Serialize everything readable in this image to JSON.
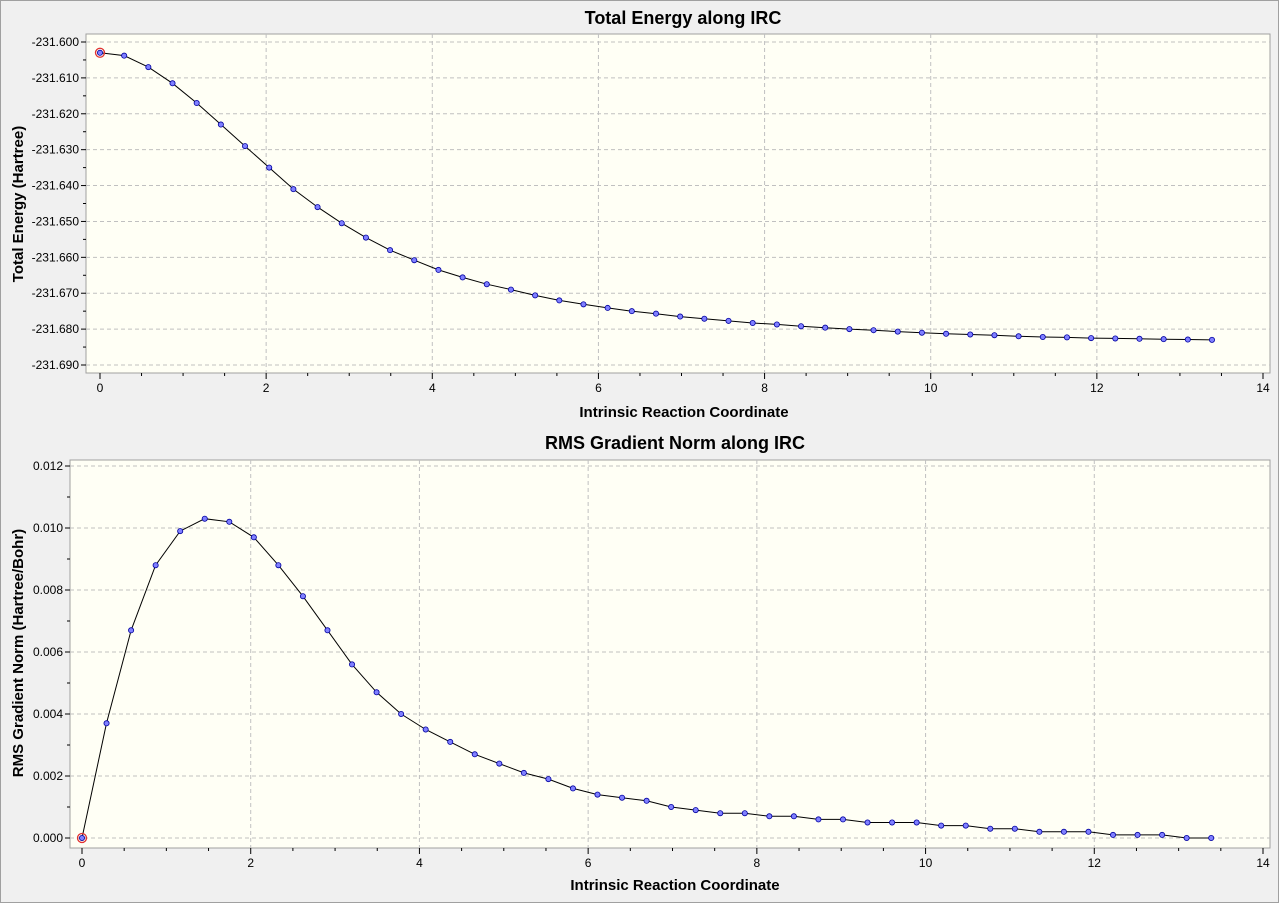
{
  "chart_data": [
    {
      "type": "line",
      "title": "Total Energy along IRC",
      "xlabel": "Intrinsic Reaction Coordinate",
      "ylabel": "Total Energy (Hartree)",
      "xlim": [
        0,
        14
      ],
      "ylim": [
        -231.69,
        -231.6
      ],
      "x_ticks": [
        "0",
        "2",
        "4",
        "6",
        "8",
        "10",
        "12",
        "14"
      ],
      "y_ticks": [
        "-231.600",
        "-231.610",
        "-231.620",
        "-231.630",
        "-231.640",
        "-231.650",
        "-231.660",
        "-231.670",
        "-231.680",
        "-231.690"
      ],
      "grid": true,
      "colors": {
        "line": "#000000",
        "marker_fill": "#8080ff",
        "marker_edge": "#0000a0",
        "highlight": "#e03030",
        "plot_bg": "#fffff5",
        "grid": "#c0c0c0"
      },
      "highlight_index": 0,
      "x": [
        0,
        0.291,
        0.582,
        0.873,
        1.164,
        1.455,
        1.746,
        2.037,
        2.328,
        2.619,
        2.91,
        3.201,
        3.492,
        3.783,
        4.074,
        4.365,
        4.656,
        4.947,
        5.238,
        5.529,
        5.82,
        6.111,
        6.402,
        6.693,
        6.984,
        7.275,
        7.566,
        7.857,
        8.148,
        8.439,
        8.73,
        9.021,
        9.312,
        9.603,
        9.894,
        10.185,
        10.476,
        10.767,
        11.058,
        11.349,
        11.64,
        11.931,
        12.222,
        12.513,
        12.804,
        13.095,
        13.386
      ],
      "y": [
        -231.603,
        -231.6038,
        -231.607,
        -231.6115,
        -231.617,
        -231.623,
        -231.629,
        -231.635,
        -231.641,
        -231.646,
        -231.6505,
        -231.6545,
        -231.658,
        -231.6608,
        -231.6635,
        -231.6656,
        -231.6675,
        -231.669,
        -231.6706,
        -231.672,
        -231.6731,
        -231.6741,
        -231.675,
        -231.6757,
        -231.6765,
        -231.6771,
        -231.6777,
        -231.6783,
        -231.6787,
        -231.6792,
        -231.6796,
        -231.68,
        -231.6803,
        -231.6807,
        -231.681,
        -231.6813,
        -231.6815,
        -231.6817,
        -231.682,
        -231.6822,
        -231.6823,
        -231.6825,
        -231.6826,
        -231.6827,
        -231.6828,
        -231.6829,
        -231.683
      ]
    },
    {
      "type": "line",
      "title": "RMS Gradient Norm along IRC",
      "xlabel": "Intrinsic Reaction Coordinate",
      "ylabel": "RMS Gradient Norm (Hartree/Bohr)",
      "xlim": [
        0,
        14
      ],
      "ylim": [
        0,
        0.012
      ],
      "x_ticks": [
        "0",
        "2",
        "4",
        "6",
        "8",
        "10",
        "12",
        "14"
      ],
      "y_ticks": [
        "0.000",
        "0.002",
        "0.004",
        "0.006",
        "0.008",
        "0.010",
        "0.012"
      ],
      "grid": true,
      "colors": {
        "line": "#000000",
        "marker_fill": "#8080ff",
        "marker_edge": "#0000a0",
        "highlight": "#e03030",
        "plot_bg": "#fffff5",
        "grid": "#c0c0c0"
      },
      "highlight_index": 0,
      "x": [
        0,
        0.291,
        0.582,
        0.873,
        1.164,
        1.455,
        1.746,
        2.037,
        2.328,
        2.619,
        2.91,
        3.201,
        3.492,
        3.783,
        4.074,
        4.365,
        4.656,
        4.947,
        5.238,
        5.529,
        5.82,
        6.111,
        6.402,
        6.693,
        6.984,
        7.275,
        7.566,
        7.857,
        8.148,
        8.439,
        8.73,
        9.021,
        9.312,
        9.603,
        9.894,
        10.185,
        10.476,
        10.767,
        11.058,
        11.349,
        11.64,
        11.931,
        12.222,
        12.513,
        12.804,
        13.095,
        13.386
      ],
      "y": [
        0.0,
        0.0037,
        0.0067,
        0.0088,
        0.0099,
        0.0103,
        0.0102,
        0.0097,
        0.0088,
        0.0078,
        0.0067,
        0.0056,
        0.0047,
        0.004,
        0.0035,
        0.0031,
        0.0027,
        0.0024,
        0.0021,
        0.0019,
        0.0016,
        0.0014,
        0.0013,
        0.0012,
        0.001,
        0.0009,
        0.0008,
        0.0008,
        0.0007,
        0.0007,
        0.0006,
        0.0006,
        0.0005,
        0.0005,
        0.0005,
        0.0004,
        0.0004,
        0.0003,
        0.0003,
        0.0002,
        0.0002,
        0.0002,
        0.0001,
        0.0001,
        0.0001,
        0.0,
        0.0
      ]
    }
  ]
}
